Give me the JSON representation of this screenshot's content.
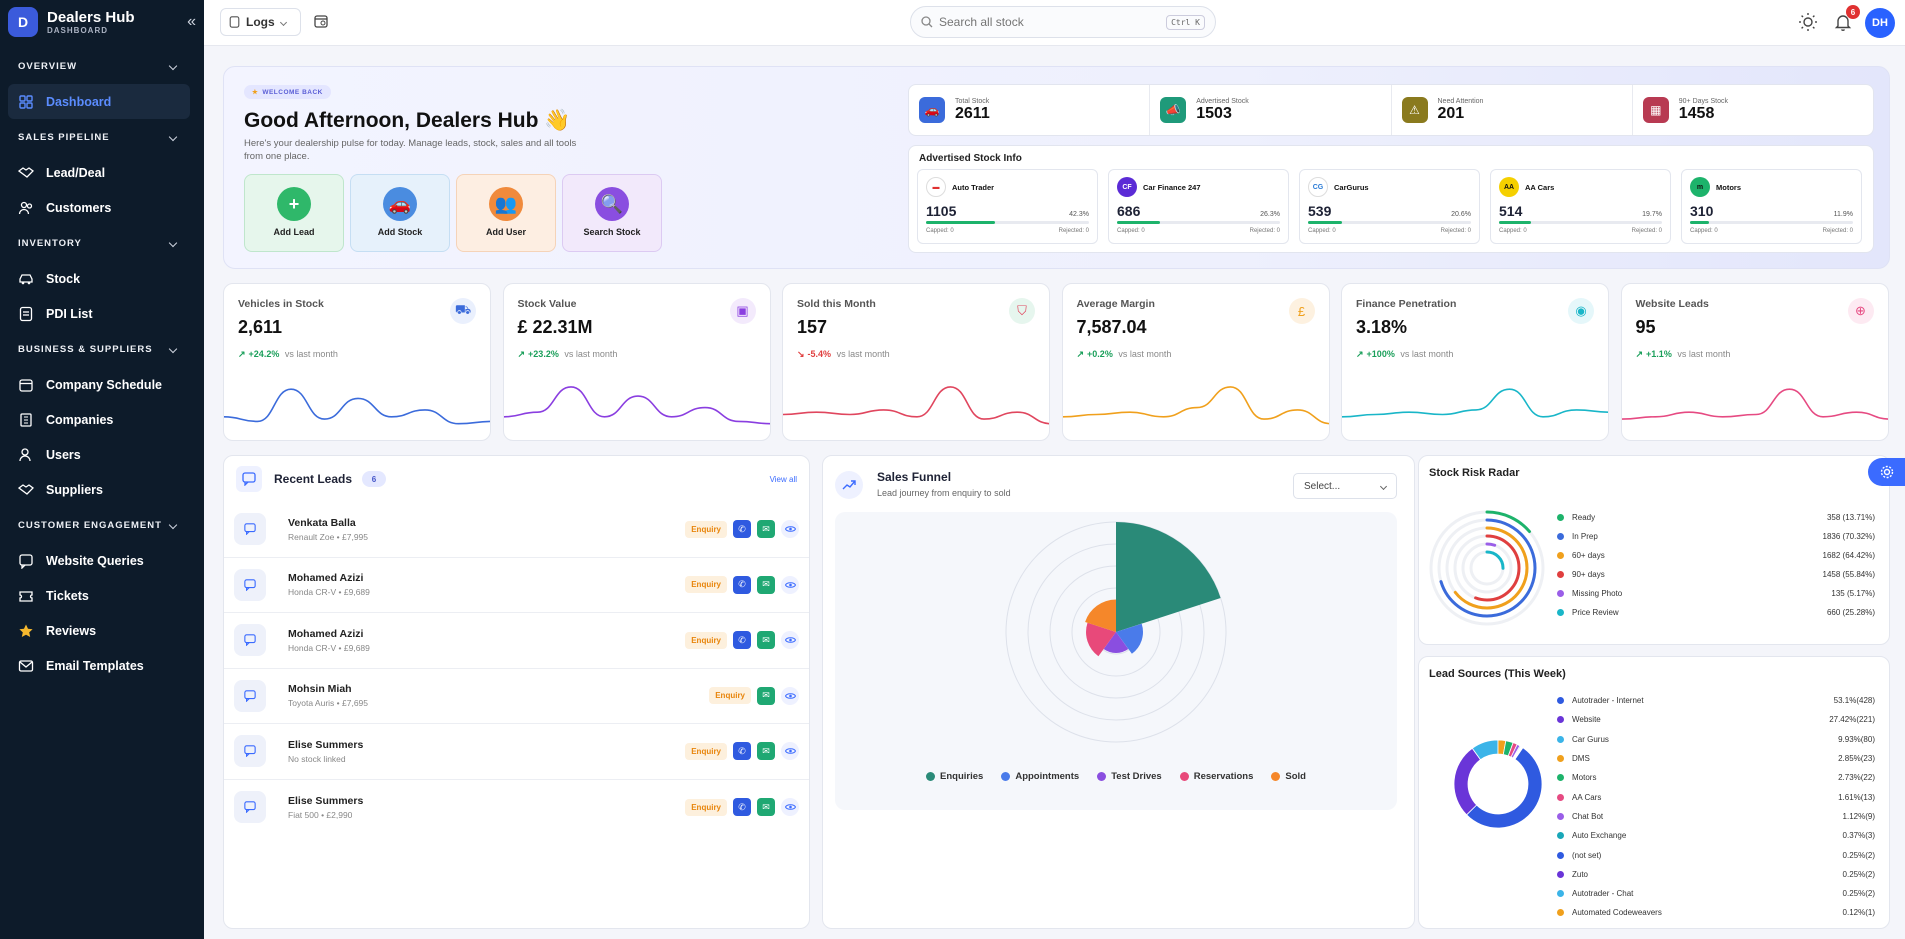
{
  "brand": {
    "title": "Dealers Hub",
    "subtitle": "DASHBOARD"
  },
  "sidebar": {
    "sections": [
      {
        "label": "OVERVIEW",
        "items": [
          {
            "label": "Dashboard",
            "icon": "grid-icon"
          }
        ]
      },
      {
        "label": "SALES PIPELINE",
        "items": [
          {
            "label": "Lead/Deal",
            "icon": "handshake-icon"
          },
          {
            "label": "Customers",
            "icon": "users-icon"
          }
        ]
      },
      {
        "label": "INVENTORY",
        "items": [
          {
            "label": "Stock",
            "icon": "car-icon"
          },
          {
            "label": "PDI List",
            "icon": "checklist-icon"
          }
        ]
      },
      {
        "label": "BUSINESS & SUPPLIERS",
        "items": [
          {
            "label": "Company Schedule",
            "icon": "calendar-icon"
          },
          {
            "label": "Companies",
            "icon": "building-icon"
          },
          {
            "label": "Users",
            "icon": "user-icon"
          },
          {
            "label": "Suppliers",
            "icon": "handshake-icon"
          }
        ]
      },
      {
        "label": "CUSTOMER ENGAGEMENT",
        "items": [
          {
            "label": "Website Queries",
            "icon": "chat-icon"
          },
          {
            "label": "Tickets",
            "icon": "ticket-icon"
          },
          {
            "label": "Reviews",
            "icon": "star-icon"
          },
          {
            "label": "Email Templates",
            "icon": "mail-icon"
          }
        ]
      }
    ]
  },
  "topbar": {
    "logs_label": "Logs",
    "search_placeholder": "Search all stock",
    "search_shortcut": "Ctrl K",
    "notifications": "6",
    "avatar_initials": "DH"
  },
  "hero": {
    "welcome": "WELCOME BACK",
    "greeting": "Good Afternoon, Dealers Hub 👋",
    "subtitle": "Here's your dealership pulse for today. Manage leads, stock, sales and all tools from one place.",
    "actions": [
      {
        "label": "Add Lead"
      },
      {
        "label": "Add Stock"
      },
      {
        "label": "Add User"
      },
      {
        "label": "Search Stock"
      }
    ],
    "stats": [
      {
        "label": "Total Stock",
        "value": "2611",
        "color": "#3b6bdb"
      },
      {
        "label": "Advertised Stock",
        "value": "1503",
        "color": "#1f9a7a"
      },
      {
        "label": "Need Attention",
        "value": "201",
        "color": "#8a7a1e"
      },
      {
        "label": "90+ Days Stock",
        "value": "1458",
        "color": "#b83a52"
      }
    ],
    "advertised_title": "Advertised Stock Info",
    "portals": [
      {
        "name": "Auto Trader",
        "value": "1105",
        "pct": "42.3%",
        "fill": 0.423,
        "capped": "Capped: 0",
        "rejected": "Rejected: 0"
      },
      {
        "name": "Car Finance 247",
        "value": "686",
        "pct": "26.3%",
        "fill": 0.263,
        "capped": "Capped: 0",
        "rejected": "Rejected: 0"
      },
      {
        "name": "CarGurus",
        "value": "539",
        "pct": "20.6%",
        "fill": 0.206,
        "capped": "Capped: 0",
        "rejected": "Rejected: 0"
      },
      {
        "name": "AA Cars",
        "value": "514",
        "pct": "19.7%",
        "fill": 0.197,
        "capped": "Capped: 0",
        "rejected": "Rejected: 0"
      },
      {
        "name": "Motors",
        "value": "310",
        "pct": "11.9%",
        "fill": 0.119,
        "capped": "Capped: 0",
        "rejected": "Rejected: 0"
      }
    ]
  },
  "kpis": [
    {
      "label": "Vehicles in Stock",
      "value": "2,611",
      "change": "+24.2%",
      "note": "vs last month",
      "color": "#3b6bdb",
      "up": true
    },
    {
      "label": "Stock Value",
      "value": "£ 22.31M",
      "change": "+23.2%",
      "note": "vs last month",
      "color": "#8a3ee0",
      "up": true
    },
    {
      "label": "Sold this Month",
      "value": "157",
      "change": "-5.4%",
      "note": "vs last month",
      "color": "#e0465e",
      "up": false
    },
    {
      "label": "Average Margin",
      "value": "7,587.04",
      "change": "+0.2%",
      "note": "vs last month",
      "color": "#f0a01c",
      "up": true
    },
    {
      "label": "Finance Penetration",
      "value": "3.18%",
      "change": "+100%",
      "note": "vs last month",
      "color": "#19b6c8",
      "up": true
    },
    {
      "label": "Website Leads",
      "value": "95",
      "change": "+1.1%",
      "note": "vs last month",
      "color": "#e64a82",
      "up": true
    }
  ],
  "leads": {
    "title": "Recent Leads",
    "count": "6",
    "view_all": "View all",
    "badge": "Enquiry",
    "rows": [
      {
        "name": "Venkata Balla",
        "sub": "Renault Zoe • £7,995",
        "phone": true
      },
      {
        "name": "Mohamed Azizi",
        "sub": "Honda CR-V • £9,689",
        "phone": true
      },
      {
        "name": "Mohamed Azizi",
        "sub": "Honda CR-V • £9,689",
        "phone": true
      },
      {
        "name": "Mohsin Miah",
        "sub": "Toyota Auris • £7,695",
        "phone": false
      },
      {
        "name": "Elise Summers",
        "sub": "No stock linked",
        "phone": true
      },
      {
        "name": "Elise Summers",
        "sub": "Fiat 500 • £2,990",
        "phone": true
      }
    ]
  },
  "funnel": {
    "title": "Sales Funnel",
    "subtitle": "Lead journey from enquiry to sold",
    "select": "Select...",
    "legend": [
      {
        "name": "Enquiries",
        "color": "#2a8a78"
      },
      {
        "name": "Appointments",
        "color": "#4a7bea"
      },
      {
        "name": "Test Drives",
        "color": "#8a4ee0"
      },
      {
        "name": "Reservations",
        "color": "#e8497a"
      },
      {
        "name": "Sold",
        "color": "#f5872a"
      }
    ]
  },
  "risk": {
    "title": "Stock Risk Radar",
    "rows": [
      {
        "name": "Ready",
        "value": "358 (13.71%)",
        "color": "#1db36b"
      },
      {
        "name": "In Prep",
        "value": "1836 (70.32%)",
        "color": "#3b6bdb"
      },
      {
        "name": "60+ days",
        "value": "1682 (64.42%)",
        "color": "#f0a01c"
      },
      {
        "name": "90+ days",
        "value": "1458 (55.84%)",
        "color": "#e03f3f"
      },
      {
        "name": "Missing Photo",
        "value": "135 (5.17%)",
        "color": "#9a5ee8"
      },
      {
        "name": "Price Review",
        "value": "660 (25.28%)",
        "color": "#19b6c8"
      }
    ]
  },
  "sources": {
    "title": "Lead Sources",
    "period": "(This Week)",
    "rows": [
      {
        "name": "Autotrader - Internet",
        "value": "53.1%(428)",
        "color": "#2f5ae0"
      },
      {
        "name": "Website",
        "value": "27.42%(221)",
        "color": "#6a35d8"
      },
      {
        "name": "Car Gurus",
        "value": "9.93%(80)",
        "color": "#3bb4e8"
      },
      {
        "name": "DMS",
        "value": "2.85%(23)",
        "color": "#f0a01c"
      },
      {
        "name": "Motors",
        "value": "2.73%(22)",
        "color": "#1db36b"
      },
      {
        "name": "AA Cars",
        "value": "1.61%(13)",
        "color": "#e64a82"
      },
      {
        "name": "Chat Bot",
        "value": "1.12%(9)",
        "color": "#9a5ee8"
      },
      {
        "name": "Auto Exchange",
        "value": "0.37%(3)",
        "color": "#19a7b8"
      },
      {
        "name": "(not set)",
        "value": "0.25%(2)",
        "color": "#2f5ae0"
      },
      {
        "name": "Zuto",
        "value": "0.25%(2)",
        "color": "#6a35d8"
      },
      {
        "name": "Autotrader - Chat",
        "value": "0.25%(2)",
        "color": "#3bb4e8"
      },
      {
        "name": "Automated Codeweavers",
        "value": "0.12%(1)",
        "color": "#f0a01c"
      }
    ]
  }
}
